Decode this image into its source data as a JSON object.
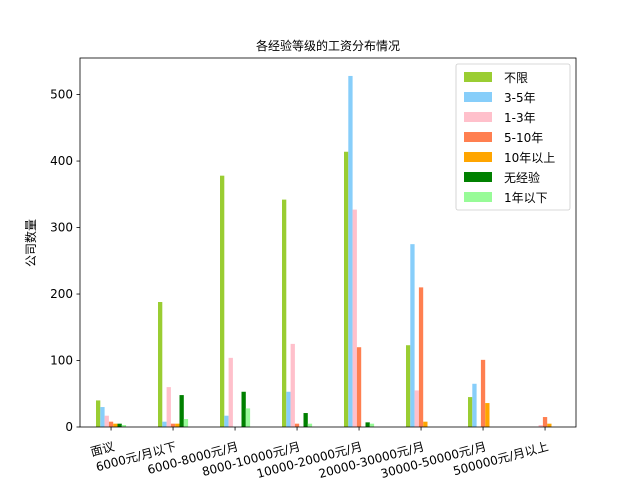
{
  "chart_data": {
    "type": "bar",
    "title": "各经验等级的工资分布情况",
    "xlabel": "",
    "ylabel": "公司数量",
    "ylim": [
      0,
      555
    ],
    "yticks": [
      0,
      100,
      200,
      300,
      400,
      500
    ],
    "grid": false,
    "legend": "top-right",
    "categories": [
      "面议",
      "6000元/月以下",
      "6000-8000元/月",
      "8000-10000元/月",
      "10000-20000元/月",
      "20000-30000元/月",
      "30000-50000元/月",
      "500000元/月以上"
    ],
    "series": [
      {
        "name": "不限",
        "color": "#9acd32",
        "values": [
          40,
          188,
          378,
          342,
          414,
          123,
          45,
          0
        ]
      },
      {
        "name": "3-5年",
        "color": "#87cefa",
        "values": [
          30,
          8,
          17,
          53,
          528,
          275,
          65,
          0
        ]
      },
      {
        "name": "1-3年",
        "color": "#ffc0cb",
        "values": [
          17,
          60,
          104,
          125,
          327,
          55,
          0,
          3
        ]
      },
      {
        "name": "5-10年",
        "color": "#ff7f50",
        "values": [
          8,
          5,
          0,
          5,
          120,
          210,
          101,
          15
        ]
      },
      {
        "name": "10年以上",
        "color": "#ffa500",
        "values": [
          5,
          5,
          0,
          0,
          0,
          8,
          36,
          5
        ]
      },
      {
        "name": "无经验",
        "color": "#008000",
        "values": [
          5,
          48,
          53,
          21,
          7,
          0,
          0,
          0
        ]
      },
      {
        "name": "1年以下",
        "color": "#98fb98",
        "values": [
          3,
          12,
          28,
          5,
          5,
          0,
          0,
          0
        ]
      }
    ]
  }
}
